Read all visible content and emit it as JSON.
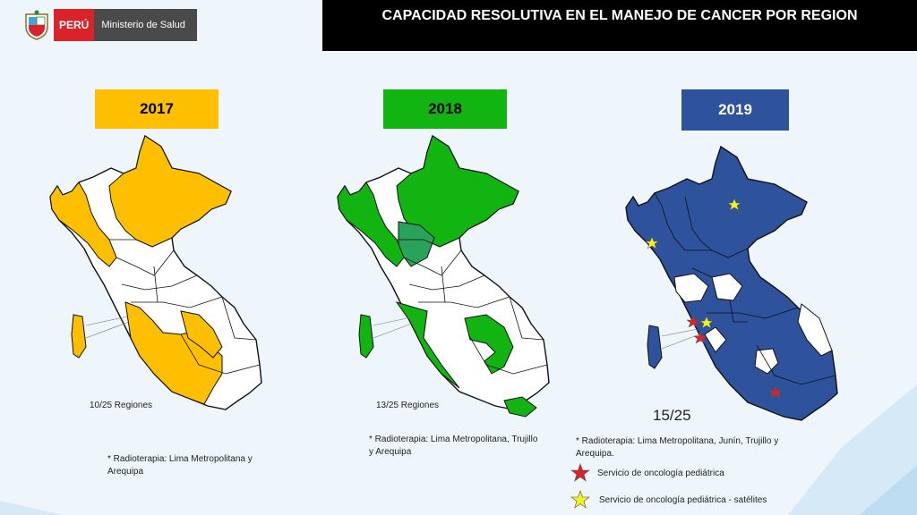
{
  "header": {
    "country": "PERÚ",
    "ministry": "Ministerio de Salud",
    "title": "CAPACIDAD RESOLUTIVA EN EL MANEJO DE CANCER POR REGION"
  },
  "panels": [
    {
      "year": "2017",
      "color": "#fdbf00",
      "count": "10/25 Regiones",
      "note": "* Radioterapia: Lima Metropolitana y Arequipa"
    },
    {
      "year": "2018",
      "color": "#12b412",
      "count": "13/25 Regiones",
      "note": "* Radioterapia: Lima Metropolitana, Trujillo y Arequipa"
    },
    {
      "year": "2019",
      "color": "#2e529b",
      "count": "15/25",
      "note": "* Radioterapia: Lima Metropolitana, Junín, Trujillo y Arequipa."
    }
  ],
  "legend": [
    {
      "icon": "red-star-icon",
      "color": "#d8232a",
      "label": "Servicio de oncología pediátrica"
    },
    {
      "icon": "yellow-star-icon",
      "color": "#f2f21c",
      "label": "Servicio de oncología pediátrica - satélites"
    }
  ]
}
